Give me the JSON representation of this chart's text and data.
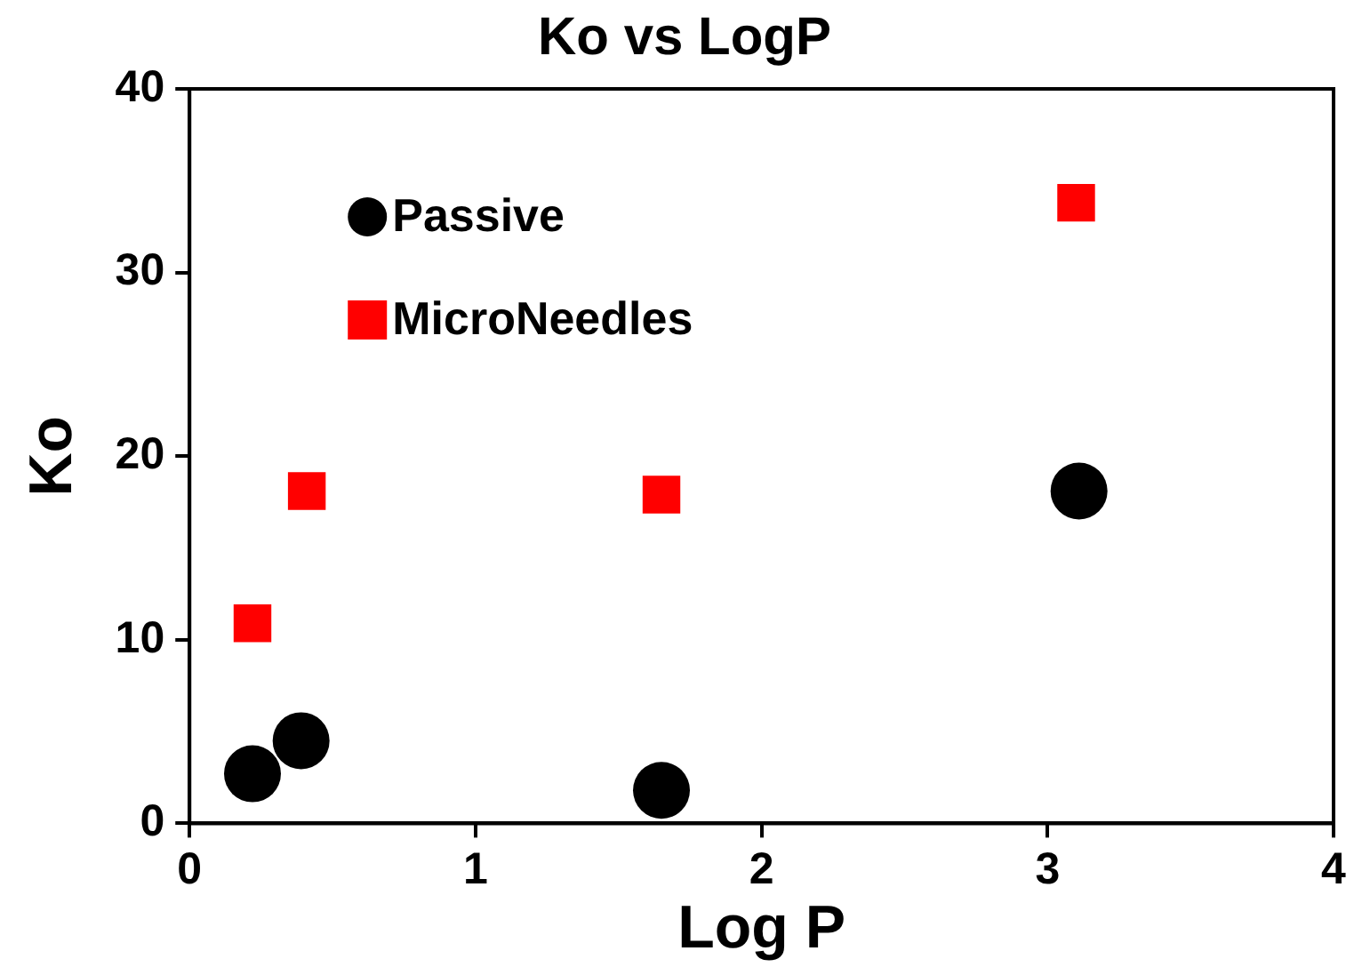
{
  "chart_data": {
    "type": "scatter",
    "title": "Ko vs LogP",
    "xlabel": "Log P",
    "ylabel": "Ko",
    "xlim": [
      0,
      4
    ],
    "xticks": [
      0,
      1,
      2,
      3,
      4
    ],
    "ylim": [
      0,
      40
    ],
    "yticks": [
      0,
      10,
      20,
      30,
      40
    ],
    "grid": false,
    "legend": "top left",
    "series": [
      {
        "name": "Passive",
        "color": "#000000",
        "marker": "circle",
        "x": [
          0.22,
          0.39,
          1.65,
          3.11
        ],
        "values": [
          2.7,
          4.5,
          1.8,
          18.1
        ]
      },
      {
        "name": "MicroNeedles",
        "color": "#ff0000",
        "marker": "square",
        "x": [
          0.22,
          0.41,
          1.65,
          3.1
        ],
        "values": [
          10.9,
          18.1,
          17.9,
          33.8
        ]
      }
    ]
  }
}
